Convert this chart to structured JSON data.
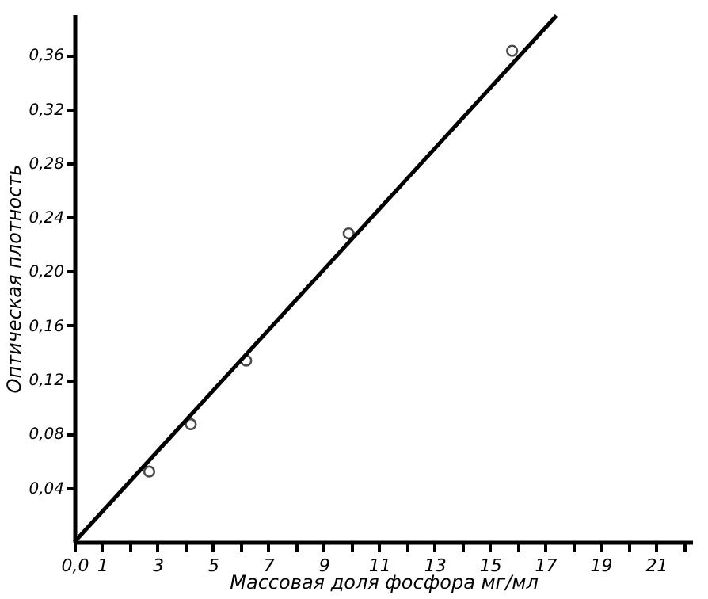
{
  "chart_data": {
    "type": "scatter",
    "xlabel": "Массовая доля фосфора мг/мл",
    "ylabel": "Оптическая плотность",
    "xlim": [
      0,
      22.3
    ],
    "ylim": [
      0,
      0.39
    ],
    "xticks": [
      {
        "value": 0,
        "label": "0,0"
      },
      1,
      {
        "value": 2,
        "label": null
      },
      3,
      {
        "value": 4,
        "label": null
      },
      5,
      {
        "value": 6,
        "label": null
      },
      7,
      {
        "value": 8,
        "label": null
      },
      9,
      {
        "value": 10,
        "label": null
      },
      11,
      {
        "value": 12,
        "label": null
      },
      13,
      {
        "value": 14,
        "label": null
      },
      15,
      {
        "value": 16,
        "label": null
      },
      17,
      {
        "value": 18,
        "label": null
      },
      19,
      {
        "value": 20,
        "label": null
      },
      21,
      {
        "value": 22,
        "label": null
      }
    ],
    "yticks": [
      {
        "value": 0.04,
        "label": "0,04"
      },
      {
        "value": 0.08,
        "label": "0,08"
      },
      {
        "value": 0.12,
        "label": "0,12"
      },
      {
        "value": 0.16,
        "label": "0,16"
      },
      {
        "value": 0.2,
        "label": "0,20"
      },
      {
        "value": 0.24,
        "label": "0,24"
      },
      {
        "value": 0.28,
        "label": "0,28"
      },
      {
        "value": 0.32,
        "label": "0,32"
      },
      {
        "value": 0.36,
        "label": "0,36"
      }
    ],
    "grid": false,
    "series": [
      {
        "marker": "circle",
        "color": "#000000",
        "x": [
          2.7,
          4.2,
          6.2,
          9.9,
          15.8
        ],
        "values": [
          0.052,
          0.087,
          0.134,
          0.228,
          0.363
        ]
      },
      {
        "type": "line",
        "marker": "none",
        "line_style": "solid",
        "color": "#000000",
        "x": [
          0,
          17.4
        ],
        "values": [
          0,
          0.389
        ]
      }
    ]
  }
}
